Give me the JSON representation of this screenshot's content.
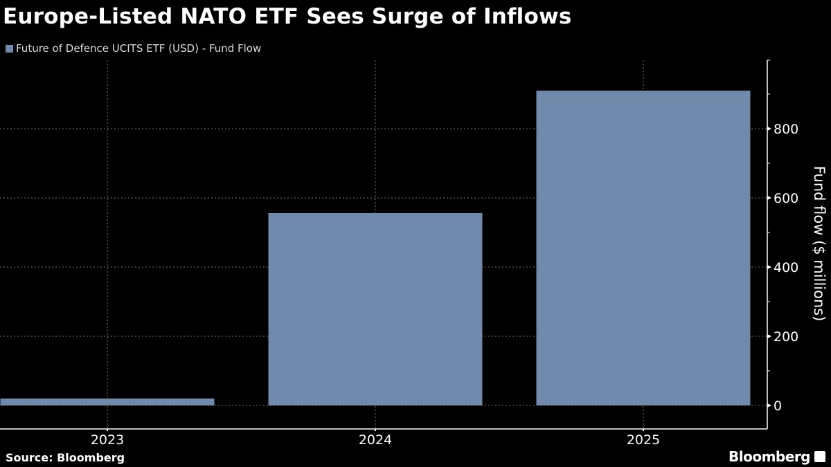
{
  "chart_data": {
    "type": "bar",
    "title": "Europe-Listed NATO ETF Sees Surge of Inflows",
    "categories": [
      "2023",
      "2024",
      "2025"
    ],
    "series": [
      {
        "name": "Future of Defence UCITS ETF (USD) - Fund Flow",
        "values": [
          20,
          556,
          910
        ],
        "color": "#7189ab"
      }
    ],
    "ylabel": "Fund flow ($ millions)",
    "ylim": [
      -65,
      998
    ],
    "yticks": [
      0,
      200,
      400,
      600,
      800
    ],
    "y_axis_side": "right",
    "grid": true,
    "legend_position": "top-left"
  },
  "source": "Source: Bloomberg",
  "logo": "Bloomberg",
  "colors": {
    "background": "#000000",
    "bar": "#7189ab",
    "text": "#ffffff"
  }
}
